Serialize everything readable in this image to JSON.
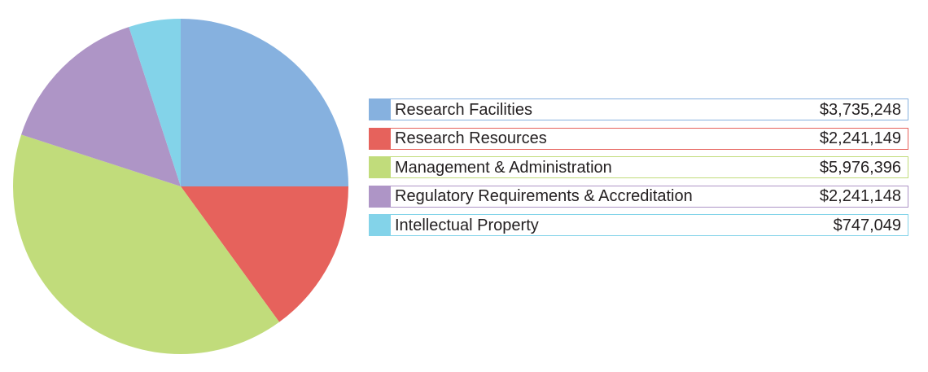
{
  "chart_data": {
    "type": "pie",
    "title": "",
    "slices": [
      {
        "label": "Research Facilities",
        "value": 3735248,
        "display": "$3,735,248",
        "color": "#86b1df"
      },
      {
        "label": "Research Resources",
        "value": 2241149,
        "display": "$2,241,149",
        "color": "#e6625c"
      },
      {
        "label": "Management & Administration",
        "value": 5976396,
        "display": "$5,976,396",
        "color": "#c1dc7b"
      },
      {
        "label": "Regulatory Requirements & Accreditation",
        "value": 2241148,
        "display": "$2,241,148",
        "color": "#ae95c6"
      },
      {
        "label": "Intellectual Property",
        "value": 747049,
        "display": "$747,049",
        "color": "#83d3e9"
      }
    ],
    "start_angle": "12 o'clock",
    "direction": "clockwise",
    "legend_position": "right"
  }
}
